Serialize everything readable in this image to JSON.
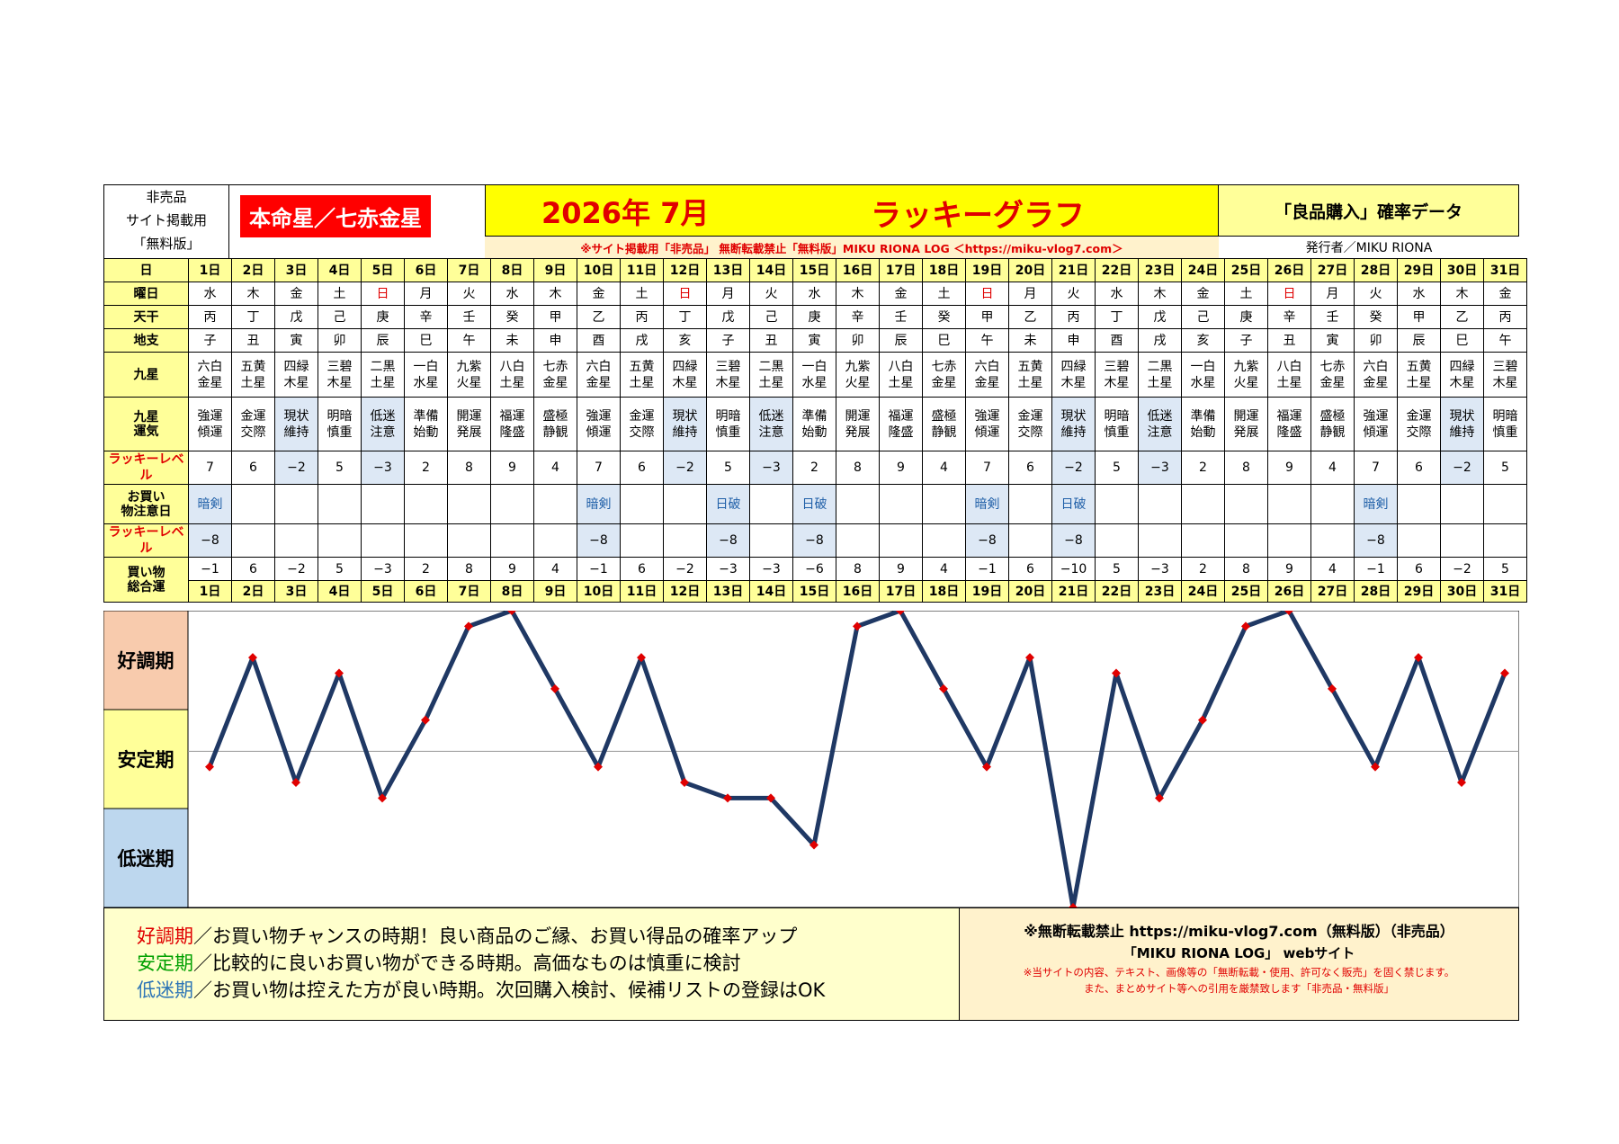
{
  "header": {
    "left_lines": [
      "非売品",
      "サイト掲載用",
      "「無料版」"
    ],
    "honmei": "本命星／七赤金星",
    "year_month": "2026年 7月",
    "graph_title": "ラッキーグラフ",
    "data_title": "「良品購入」確率データ",
    "notice": "※サイト掲載用「非売品」 無断転載禁止「無料版」MIKU RIONA LOG ＜https://miku-vlog7.com＞",
    "publisher": "発行者／MIKU RIONA"
  },
  "row_labels": {
    "day": "日",
    "weekday": "曜日",
    "stem": "天干",
    "branch": "地支",
    "star": "九星",
    "fortune": "九星運気",
    "lucky": "ラッキーレベル",
    "caution": "お買い物注意日",
    "lucky2": "ラッキーレベル",
    "total": "買い物総合運"
  },
  "days": [
    "1日",
    "2日",
    "3日",
    "4日",
    "5日",
    "6日",
    "7日",
    "8日",
    "9日",
    "10日",
    "11日",
    "12日",
    "13日",
    "14日",
    "15日",
    "16日",
    "17日",
    "18日",
    "19日",
    "20日",
    "21日",
    "22日",
    "23日",
    "24日",
    "25日",
    "26日",
    "27日",
    "28日",
    "29日",
    "30日",
    "31日"
  ],
  "weekdays": [
    "水",
    "木",
    "金",
    "土",
    "日",
    "月",
    "火",
    "水",
    "木",
    "金",
    "土",
    "日",
    "月",
    "火",
    "水",
    "木",
    "金",
    "土",
    "日",
    "月",
    "火",
    "水",
    "木",
    "金",
    "土",
    "日",
    "月",
    "火",
    "水",
    "木",
    "金"
  ],
  "stems": [
    "丙",
    "丁",
    "戊",
    "己",
    "庚",
    "辛",
    "壬",
    "癸",
    "甲",
    "乙",
    "丙",
    "丁",
    "戊",
    "己",
    "庚",
    "辛",
    "壬",
    "癸",
    "甲",
    "乙",
    "丙",
    "丁",
    "戊",
    "己",
    "庚",
    "辛",
    "壬",
    "癸",
    "甲",
    "乙",
    "丙"
  ],
  "branches": [
    "子",
    "丑",
    "寅",
    "卯",
    "辰",
    "巳",
    "午",
    "未",
    "申",
    "酉",
    "戌",
    "亥",
    "子",
    "丑",
    "寅",
    "卯",
    "辰",
    "巳",
    "午",
    "未",
    "申",
    "酉",
    "戌",
    "亥",
    "子",
    "丑",
    "寅",
    "卯",
    "辰",
    "巳",
    "午"
  ],
  "stars": [
    "六白金星",
    "五黄土星",
    "四緑木星",
    "三碧木星",
    "二黒土星",
    "一白水星",
    "九紫火星",
    "八白土星",
    "七赤金星",
    "六白金星",
    "五黄土星",
    "四緑木星",
    "三碧木星",
    "二黒土星",
    "一白水星",
    "九紫火星",
    "八白土星",
    "七赤金星",
    "六白金星",
    "五黄土星",
    "四緑木星",
    "三碧木星",
    "二黒土星",
    "一白水星",
    "九紫火星",
    "八白土星",
    "七赤金星",
    "六白金星",
    "五黄土星",
    "四緑木星",
    "三碧木星"
  ],
  "fortunes": [
    "強運傾運",
    "金運交際",
    "現状維持",
    "明暗慎重",
    "低迷注意",
    "準備始動",
    "開運発展",
    "福運隆盛",
    "盛極静観",
    "強運傾運",
    "金運交際",
    "現状維持",
    "明暗慎重",
    "低迷注意",
    "準備始動",
    "開運発展",
    "福運隆盛",
    "盛極静観",
    "強運傾運",
    "金運交際",
    "現状維持",
    "明暗慎重",
    "低迷注意",
    "準備始動",
    "開運発展",
    "福運隆盛",
    "盛極静観",
    "強運傾運",
    "金運交際",
    "現状維持",
    "明暗慎重"
  ],
  "lucky_levels": [
    "7",
    "6",
    "−2",
    "5",
    "−3",
    "2",
    "8",
    "9",
    "4",
    "7",
    "6",
    "−2",
    "5",
    "−3",
    "2",
    "8",
    "9",
    "4",
    "7",
    "6",
    "−2",
    "5",
    "−3",
    "2",
    "8",
    "9",
    "4",
    "7",
    "6",
    "−2",
    "5"
  ],
  "caution_days": [
    "暗剣",
    "",
    "",
    "",
    "",
    "",
    "",
    "",
    "",
    "暗剣",
    "",
    "",
    "日破",
    "",
    "日破",
    "",
    "",
    "",
    "暗剣",
    "",
    "日破",
    "",
    "",
    "",
    "",
    "",
    "",
    "暗剣",
    "",
    "",
    ""
  ],
  "caution_levels": [
    "−8",
    "",
    "",
    "",
    "",
    "",
    "",
    "",
    "",
    "−8",
    "",
    "",
    "−8",
    "",
    "−8",
    "",
    "",
    "",
    "−8",
    "",
    "−8",
    "",
    "",
    "",
    "",
    "",
    "",
    "−8",
    "",
    "",
    ""
  ],
  "totals": [
    "−1",
    "6",
    "−2",
    "5",
    "−3",
    "2",
    "8",
    "9",
    "4",
    "−1",
    "6",
    "−2",
    "−3",
    "−3",
    "−6",
    "8",
    "9",
    "4",
    "−1",
    "6",
    "−10",
    "5",
    "−3",
    "2",
    "8",
    "9",
    "4",
    "−1",
    "6",
    "−2",
    "5"
  ],
  "chart_data": {
    "type": "line",
    "x": [
      "1日",
      "2日",
      "3日",
      "4日",
      "5日",
      "6日",
      "7日",
      "8日",
      "9日",
      "10日",
      "11日",
      "12日",
      "13日",
      "14日",
      "15日",
      "16日",
      "17日",
      "18日",
      "19日",
      "20日",
      "21日",
      "22日",
      "23日",
      "24日",
      "25日",
      "26日",
      "27日",
      "28日",
      "29日",
      "30日",
      "31日"
    ],
    "values": [
      -1,
      6,
      -2,
      5,
      -3,
      2,
      8,
      9,
      4,
      -1,
      6,
      -2,
      -3,
      -3,
      -6,
      8,
      9,
      4,
      -1,
      6,
      -10,
      5,
      -3,
      2,
      8,
      9,
      4,
      -1,
      6,
      -2,
      5
    ],
    "ylim": [
      -10,
      9
    ],
    "band_labels": [
      "好調期",
      "安定期",
      "低迷期"
    ],
    "band_colors": [
      "#f8cbad",
      "#ffff99",
      "#bdd7ee"
    ],
    "line_color": "#1f3864",
    "marker_color": "#e00000"
  },
  "footer": {
    "legend": [
      {
        "term": "好調期",
        "text": "／お買い物チャンスの時期！良い商品のご縁、お買い得品の確率アップ",
        "color": "#e00000"
      },
      {
        "term": "安定期",
        "text": "／比較的に良いお買い物ができる時期。高価なものは慎重に検討",
        "color": "#00a000"
      },
      {
        "term": "低迷期",
        "text": "／お買い物は控えた方が良い時期。次回購入検討、候補リストの登録はOK",
        "color": "#2e75b6"
      }
    ],
    "right_line1": "※無断転載禁止 https://miku-vlog7.com（無料版）（非売品）",
    "right_line2": "「MIKU RIONA LOG」 webサイト",
    "right_line3": "※当サイトの内容、テキスト、画像等の「無断転載・使用、許可なく販売」を固く禁じます。",
    "right_line4": "また、まとめサイト等への引用を厳禁致します「非売品・無料版」"
  }
}
